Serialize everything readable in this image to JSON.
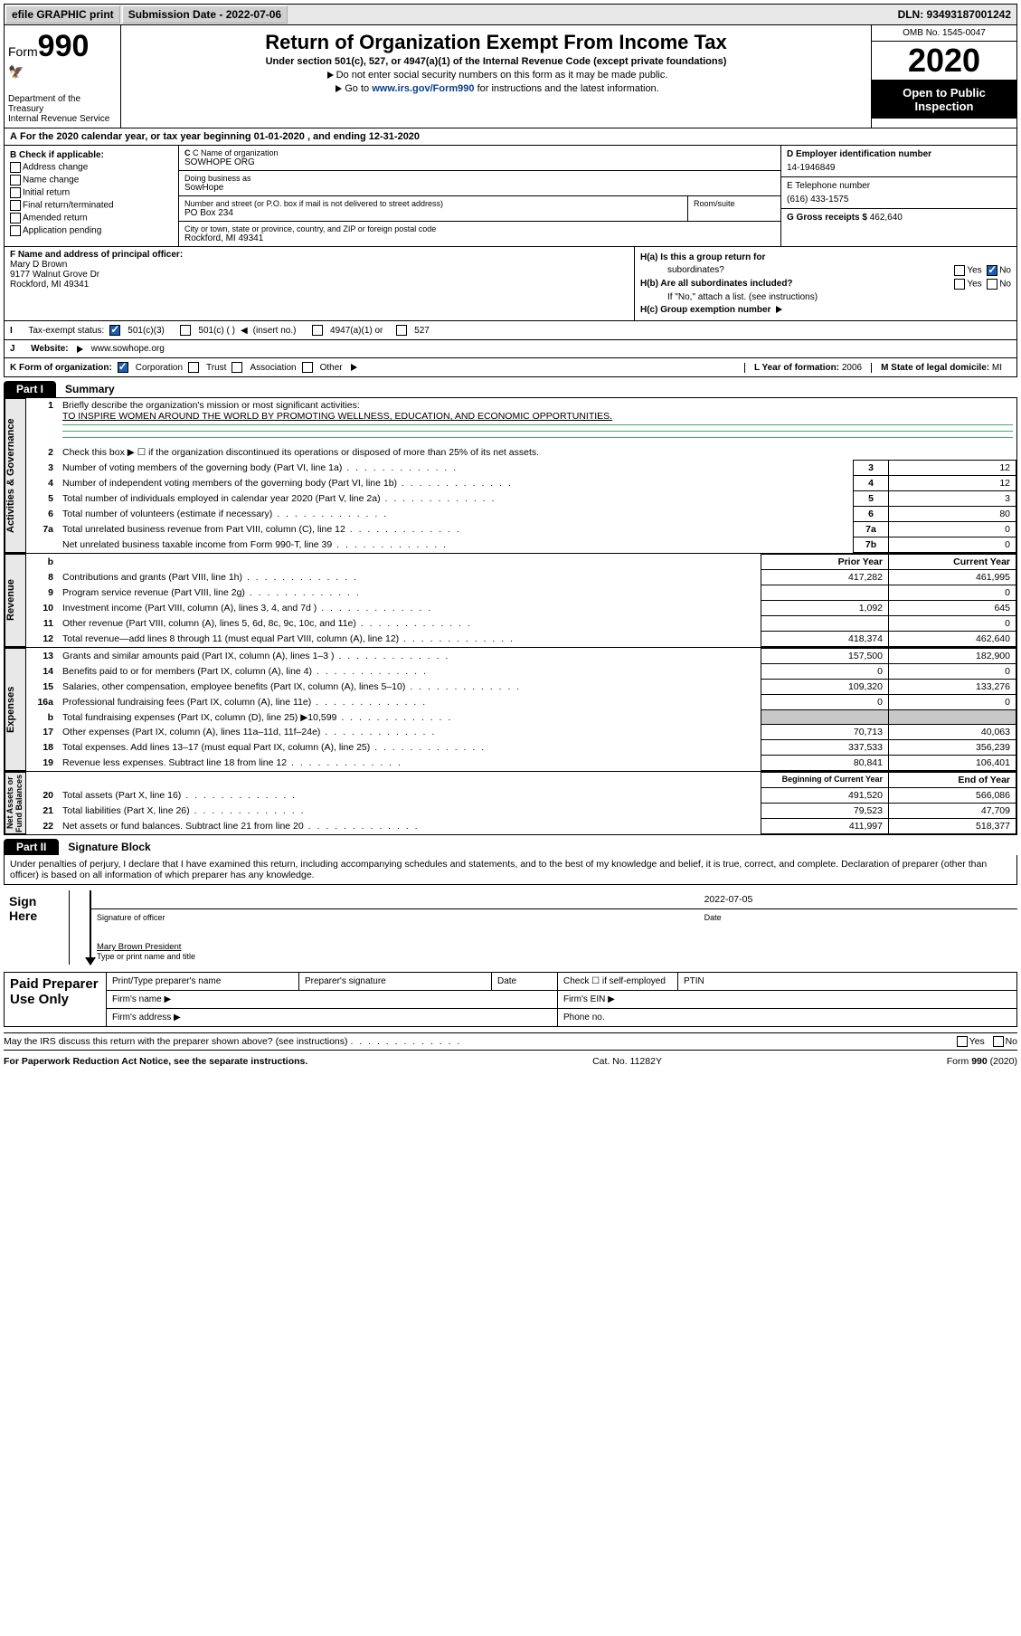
{
  "topbar": {
    "efile": "efile GRAPHIC print",
    "submission_label": "Submission Date - 2022-07-06",
    "dln": "DLN: 93493187001242"
  },
  "header": {
    "form_prefix": "Form",
    "form_number": "990",
    "title": "Return of Organization Exempt From Income Tax",
    "subtitle": "Under section 501(c), 527, or 4947(a)(1) of the Internal Revenue Code (except private foundations)",
    "warn1": "Do not enter social security numbers on this form as it may be made public.",
    "warn2_pre": "Go to ",
    "warn2_link": "www.irs.gov/Form990",
    "warn2_post": " for instructions and the latest information.",
    "dept": "Department of the Treasury\nInternal Revenue Service",
    "omb": "OMB No. 1545-0047",
    "year": "2020",
    "inspect": "Open to Public Inspection"
  },
  "taxyear": "For the 2020 calendar year, or tax year beginning 01-01-2020   , and ending 12-31-2020",
  "boxB": {
    "label": "B Check if applicable:",
    "opts": [
      "Address change",
      "Name change",
      "Initial return",
      "Final return/terminated",
      "Amended return",
      "Application pending"
    ]
  },
  "boxC": {
    "name_label": "C Name of organization",
    "name": "SOWHOPE ORG",
    "dba_label": "Doing business as",
    "dba": "SowHope",
    "street_label": "Number and street (or P.O. box if mail is not delivered to street address)",
    "street": "PO Box 234",
    "room_label": "Room/suite",
    "city_label": "City or town, state or province, country, and ZIP or foreign postal code",
    "city": "Rockford, MI  49341"
  },
  "boxD": {
    "label": "D Employer identification number",
    "val": "14-1946849"
  },
  "boxE": {
    "label": "E Telephone number",
    "val": "(616) 433-1575"
  },
  "boxG": {
    "label": "G Gross receipts $",
    "val": "462,640"
  },
  "boxF": {
    "label": "F  Name and address of principal officer:",
    "name": "Mary D Brown",
    "addr1": "9177 Walnut Grove Dr",
    "addr2": "Rockford, MI  49341"
  },
  "boxH": {
    "a_label": "H(a)  Is this a group return for",
    "a_label2": "subordinates?",
    "b_label": "H(b)  Are all subordinates included?",
    "b_note": "If \"No,\" attach a list. (see instructions)",
    "c_label": "H(c)  Group exemption number",
    "yes": "Yes",
    "no": "No"
  },
  "boxI": {
    "label": "Tax-exempt status:",
    "c3": "501(c)(3)",
    "c": "501(c) (  )",
    "insert": "(insert no.)",
    "a4947": "4947(a)(1) or",
    "s527": "527"
  },
  "boxJ": {
    "label": "Website:",
    "val": "www.sowhope.org"
  },
  "boxK": {
    "label": "K Form of organization:",
    "corp": "Corporation",
    "trust": "Trust",
    "assoc": "Association",
    "other": "Other"
  },
  "boxL": {
    "label": "L Year of formation:",
    "val": "2006"
  },
  "boxM": {
    "label": "M State of legal domicile:",
    "val": "MI"
  },
  "part1": {
    "tab": "Part I",
    "title": "Summary",
    "vlabels": {
      "gov": "Activities & Governance",
      "rev": "Revenue",
      "exp": "Expenses",
      "net": "Net Assets or\nFund Balances"
    },
    "l1": "Briefly describe the organization's mission or most significant activities:",
    "mission": "TO INSPIRE WOMEN AROUND THE WORLD BY PROMOTING WELLNESS, EDUCATION, AND ECONOMIC OPPORTUNITIES.",
    "l2": "Check this box ▶ ☐  if the organization discontinued its operations or disposed of more than 25% of its net assets.",
    "rows_gov": [
      {
        "n": "3",
        "d": "Number of voting members of the governing body (Part VI, line 1a)",
        "b": "3",
        "v": "12"
      },
      {
        "n": "4",
        "d": "Number of independent voting members of the governing body (Part VI, line 1b)",
        "b": "4",
        "v": "12"
      },
      {
        "n": "5",
        "d": "Total number of individuals employed in calendar year 2020 (Part V, line 2a)",
        "b": "5",
        "v": "3"
      },
      {
        "n": "6",
        "d": "Total number of volunteers (estimate if necessary)",
        "b": "6",
        "v": "80"
      },
      {
        "n": "7a",
        "d": "Total unrelated business revenue from Part VIII, column (C), line 12",
        "b": "7a",
        "v": "0"
      },
      {
        "n": "",
        "d": "Net unrelated business taxable income from Form 990-T, line 39",
        "b": "7b",
        "v": "0"
      }
    ],
    "head_prior": "Prior Year",
    "head_curr": "Current Year",
    "rows_rev": [
      {
        "n": "8",
        "d": "Contributions and grants (Part VIII, line 1h)",
        "p": "417,282",
        "c": "461,995"
      },
      {
        "n": "9",
        "d": "Program service revenue (Part VIII, line 2g)",
        "p": "",
        "c": "0"
      },
      {
        "n": "10",
        "d": "Investment income (Part VIII, column (A), lines 3, 4, and 7d )",
        "p": "1,092",
        "c": "645"
      },
      {
        "n": "11",
        "d": "Other revenue (Part VIII, column (A), lines 5, 6d, 8c, 9c, 10c, and 11e)",
        "p": "",
        "c": "0"
      },
      {
        "n": "12",
        "d": "Total revenue—add lines 8 through 11 (must equal Part VIII, column (A), line 12)",
        "p": "418,374",
        "c": "462,640"
      }
    ],
    "rows_exp": [
      {
        "n": "13",
        "d": "Grants and similar amounts paid (Part IX, column (A), lines 1–3 )",
        "p": "157,500",
        "c": "182,900"
      },
      {
        "n": "14",
        "d": "Benefits paid to or for members (Part IX, column (A), line 4)",
        "p": "0",
        "c": "0"
      },
      {
        "n": "15",
        "d": "Salaries, other compensation, employee benefits (Part IX, column (A), lines 5–10)",
        "p": "109,320",
        "c": "133,276"
      },
      {
        "n": "16a",
        "d": "Professional fundraising fees (Part IX, column (A), line 11e)",
        "p": "0",
        "c": "0"
      },
      {
        "n": "b",
        "d": "Total fundraising expenses (Part IX, column (D), line 25) ▶10,599",
        "p": "GRAY",
        "c": "GRAY"
      },
      {
        "n": "17",
        "d": "Other expenses (Part IX, column (A), lines 11a–11d, 11f–24e)",
        "p": "70,713",
        "c": "40,063"
      },
      {
        "n": "18",
        "d": "Total expenses. Add lines 13–17 (must equal Part IX, column (A), line 25)",
        "p": "337,533",
        "c": "356,239"
      },
      {
        "n": "19",
        "d": "Revenue less expenses. Subtract line 18 from line 12",
        "p": "80,841",
        "c": "106,401"
      }
    ],
    "head_beg": "Beginning of Current Year",
    "head_end": "End of Year",
    "rows_net": [
      {
        "n": "20",
        "d": "Total assets (Part X, line 16)",
        "p": "491,520",
        "c": "566,086"
      },
      {
        "n": "21",
        "d": "Total liabilities (Part X, line 26)",
        "p": "79,523",
        "c": "47,709"
      },
      {
        "n": "22",
        "d": "Net assets or fund balances. Subtract line 21 from line 20",
        "p": "411,997",
        "c": "518,377"
      }
    ]
  },
  "part2": {
    "tab": "Part II",
    "title": "Signature Block",
    "declaration": "Under penalties of perjury, I declare that I have examined this return, including accompanying schedules and statements, and to the best of my knowledge and belief, it is true, correct, and complete. Declaration of preparer (other than officer) is based on all information of which preparer has any knowledge.",
    "sign_here": "Sign Here",
    "sig_officer_label": "Signature of officer",
    "date_label": "Date",
    "date_val": "2022-07-05",
    "officer_name": "Mary Brown  President",
    "officer_name_label": "Type or print name and title",
    "paid": "Paid Preparer Use Only",
    "print_name": "Print/Type preparer's name",
    "prep_sig": "Preparer's signature",
    "date": "Date",
    "check_self": "Check ☐ if self-employed",
    "ptin": "PTIN",
    "firm_name": "Firm's name  ▶",
    "firm_ein": "Firm's EIN ▶",
    "firm_addr": "Firm's address ▶",
    "phone": "Phone no.",
    "discuss": "May the IRS discuss this return with the preparer shown above? (see instructions)"
  },
  "footer": {
    "paperwork": "For Paperwork Reduction Act Notice, see the separate instructions.",
    "cat": "Cat. No. 11282Y",
    "form": "Form 990 (2020)"
  },
  "color": {
    "link": "#1a5fb4"
  }
}
